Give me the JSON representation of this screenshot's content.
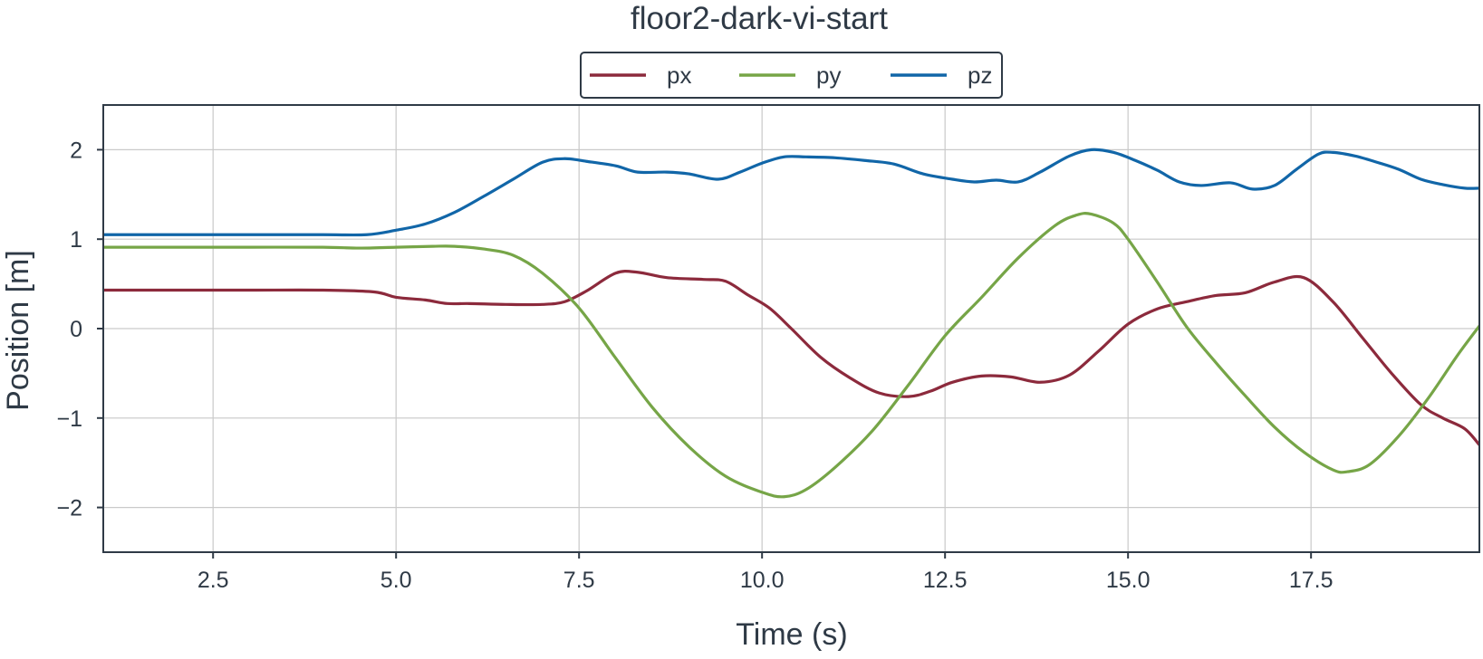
{
  "chart_data": {
    "type": "line",
    "title": "floor2-dark-vi-start",
    "xlabel": "Time (s)",
    "ylabel": "Position [m]",
    "xlim": [
      1.0,
      19.8
    ],
    "ylim": [
      -2.5,
      2.5
    ],
    "grid": true,
    "legend_position": "top-center",
    "x_ticks": [
      2.5,
      5.0,
      7.5,
      10.0,
      12.5,
      15.0,
      17.5
    ],
    "x_tick_labels": [
      "2.5",
      "5.0",
      "7.5",
      "10.0",
      "12.5",
      "15.0",
      "17.5"
    ],
    "y_ticks": [
      2,
      1,
      0,
      -1,
      -2
    ],
    "y_tick_labels": [
      "2",
      "1",
      "0",
      "−1",
      "−2"
    ],
    "series": [
      {
        "name": "px",
        "color": "#8c2a3c",
        "x": [
          1.0,
          2.0,
          3.0,
          4.0,
          4.7,
          5.0,
          5.4,
          5.7,
          6.0,
          6.5,
          7.0,
          7.3,
          7.6,
          8.0,
          8.3,
          8.7,
          9.2,
          9.5,
          9.8,
          10.1,
          10.4,
          10.8,
          11.2,
          11.6,
          12.0,
          12.3,
          12.6,
          13.0,
          13.4,
          13.8,
          14.2,
          14.6,
          15.0,
          15.4,
          15.8,
          16.2,
          16.6,
          17.0,
          17.4,
          17.8,
          18.2,
          18.6,
          19.0,
          19.3,
          19.6,
          19.8
        ],
        "y": [
          0.43,
          0.43,
          0.43,
          0.43,
          0.41,
          0.35,
          0.32,
          0.28,
          0.28,
          0.27,
          0.27,
          0.3,
          0.42,
          0.62,
          0.63,
          0.57,
          0.55,
          0.53,
          0.38,
          0.23,
          0.0,
          -0.32,
          -0.55,
          -0.72,
          -0.76,
          -0.7,
          -0.6,
          -0.53,
          -0.54,
          -0.6,
          -0.52,
          -0.25,
          0.05,
          0.22,
          0.3,
          0.37,
          0.4,
          0.52,
          0.57,
          0.3,
          -0.1,
          -0.5,
          -0.85,
          -1.0,
          -1.12,
          -1.3
        ]
      },
      {
        "name": "py",
        "color": "#76a547",
        "x": [
          1.0,
          2.0,
          3.0,
          4.0,
          4.5,
          5.0,
          5.5,
          5.8,
          6.2,
          6.6,
          7.0,
          7.5,
          8.0,
          8.5,
          9.0,
          9.5,
          10.0,
          10.3,
          10.6,
          11.0,
          11.5,
          12.0,
          12.5,
          13.0,
          13.5,
          14.0,
          14.3,
          14.5,
          14.8,
          15.0,
          15.4,
          15.8,
          16.2,
          16.6,
          17.0,
          17.4,
          17.8,
          18.0,
          18.3,
          18.7,
          19.1,
          19.5,
          19.8
        ],
        "y": [
          0.91,
          0.91,
          0.91,
          0.91,
          0.9,
          0.91,
          0.92,
          0.92,
          0.89,
          0.82,
          0.62,
          0.23,
          -0.33,
          -0.88,
          -1.32,
          -1.65,
          -1.83,
          -1.88,
          -1.8,
          -1.55,
          -1.15,
          -0.63,
          -0.08,
          0.35,
          0.79,
          1.15,
          1.27,
          1.28,
          1.18,
          1.0,
          0.52,
          0.02,
          -0.38,
          -0.75,
          -1.1,
          -1.38,
          -1.58,
          -1.6,
          -1.52,
          -1.2,
          -0.78,
          -0.3,
          0.03
        ]
      },
      {
        "name": "pz",
        "color": "#1166a8",
        "x": [
          1.0,
          2.0,
          3.0,
          4.0,
          4.6,
          5.0,
          5.4,
          5.8,
          6.2,
          6.6,
          7.0,
          7.3,
          7.6,
          8.0,
          8.3,
          8.7,
          9.0,
          9.4,
          9.7,
          10.0,
          10.3,
          10.6,
          11.0,
          11.4,
          11.8,
          12.2,
          12.6,
          12.9,
          13.2,
          13.5,
          13.8,
          14.2,
          14.5,
          14.8,
          15.1,
          15.4,
          15.7,
          16.0,
          16.4,
          16.7,
          17.0,
          17.3,
          17.6,
          17.8,
          18.1,
          18.4,
          18.7,
          19.0,
          19.3,
          19.6,
          19.8
        ],
        "y": [
          1.05,
          1.05,
          1.05,
          1.05,
          1.05,
          1.1,
          1.17,
          1.3,
          1.48,
          1.67,
          1.86,
          1.9,
          1.87,
          1.82,
          1.75,
          1.75,
          1.73,
          1.67,
          1.75,
          1.85,
          1.92,
          1.92,
          1.91,
          1.88,
          1.84,
          1.73,
          1.67,
          1.64,
          1.66,
          1.64,
          1.75,
          1.93,
          2.0,
          1.97,
          1.88,
          1.77,
          1.64,
          1.6,
          1.63,
          1.56,
          1.6,
          1.78,
          1.95,
          1.97,
          1.93,
          1.86,
          1.78,
          1.67,
          1.61,
          1.57,
          1.57
        ]
      }
    ]
  }
}
